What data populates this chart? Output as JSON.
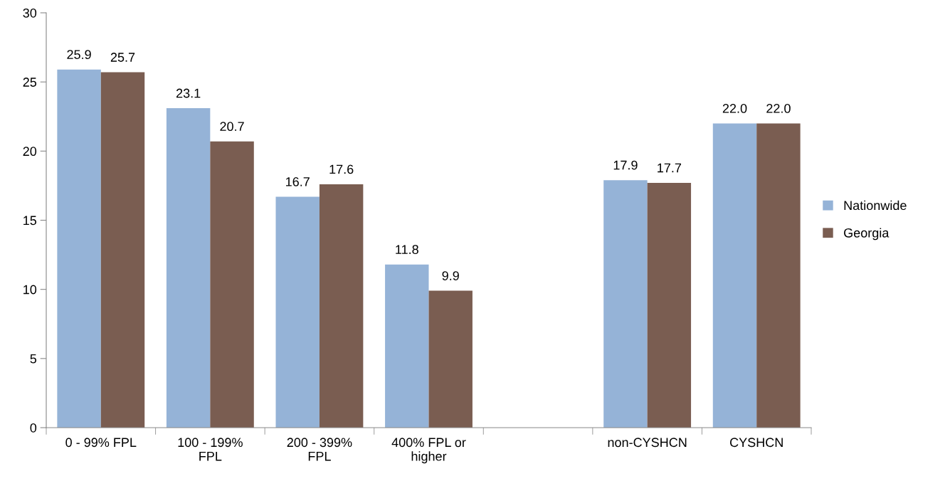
{
  "chart_data": {
    "type": "bar",
    "categories": [
      "0 - 99% FPL",
      "100 - 199% FPL",
      "200 - 399% FPL",
      "400% FPL or higher",
      null,
      "non-CYSHCN",
      "CYSHCN"
    ],
    "series": [
      {
        "name": "Nationwide",
        "color": "#95b3d7",
        "values": [
          25.9,
          23.1,
          16.7,
          11.8,
          null,
          17.9,
          22.0
        ],
        "value_labels": [
          "25.9",
          "23.1",
          "16.7",
          "11.8",
          null,
          "17.9",
          "22.0"
        ]
      },
      {
        "name": "Georgia",
        "color": "#7a5d51",
        "values": [
          25.7,
          20.7,
          17.6,
          9.9,
          null,
          17.7,
          22.0
        ],
        "value_labels": [
          "25.7",
          "20.7",
          "17.6",
          "9.9",
          null,
          "17.7",
          "22.0"
        ]
      }
    ],
    "ylim": [
      0,
      30
    ],
    "yticks": [
      0,
      5,
      10,
      15,
      20,
      25,
      30
    ],
    "grid": false,
    "legend": "right"
  }
}
